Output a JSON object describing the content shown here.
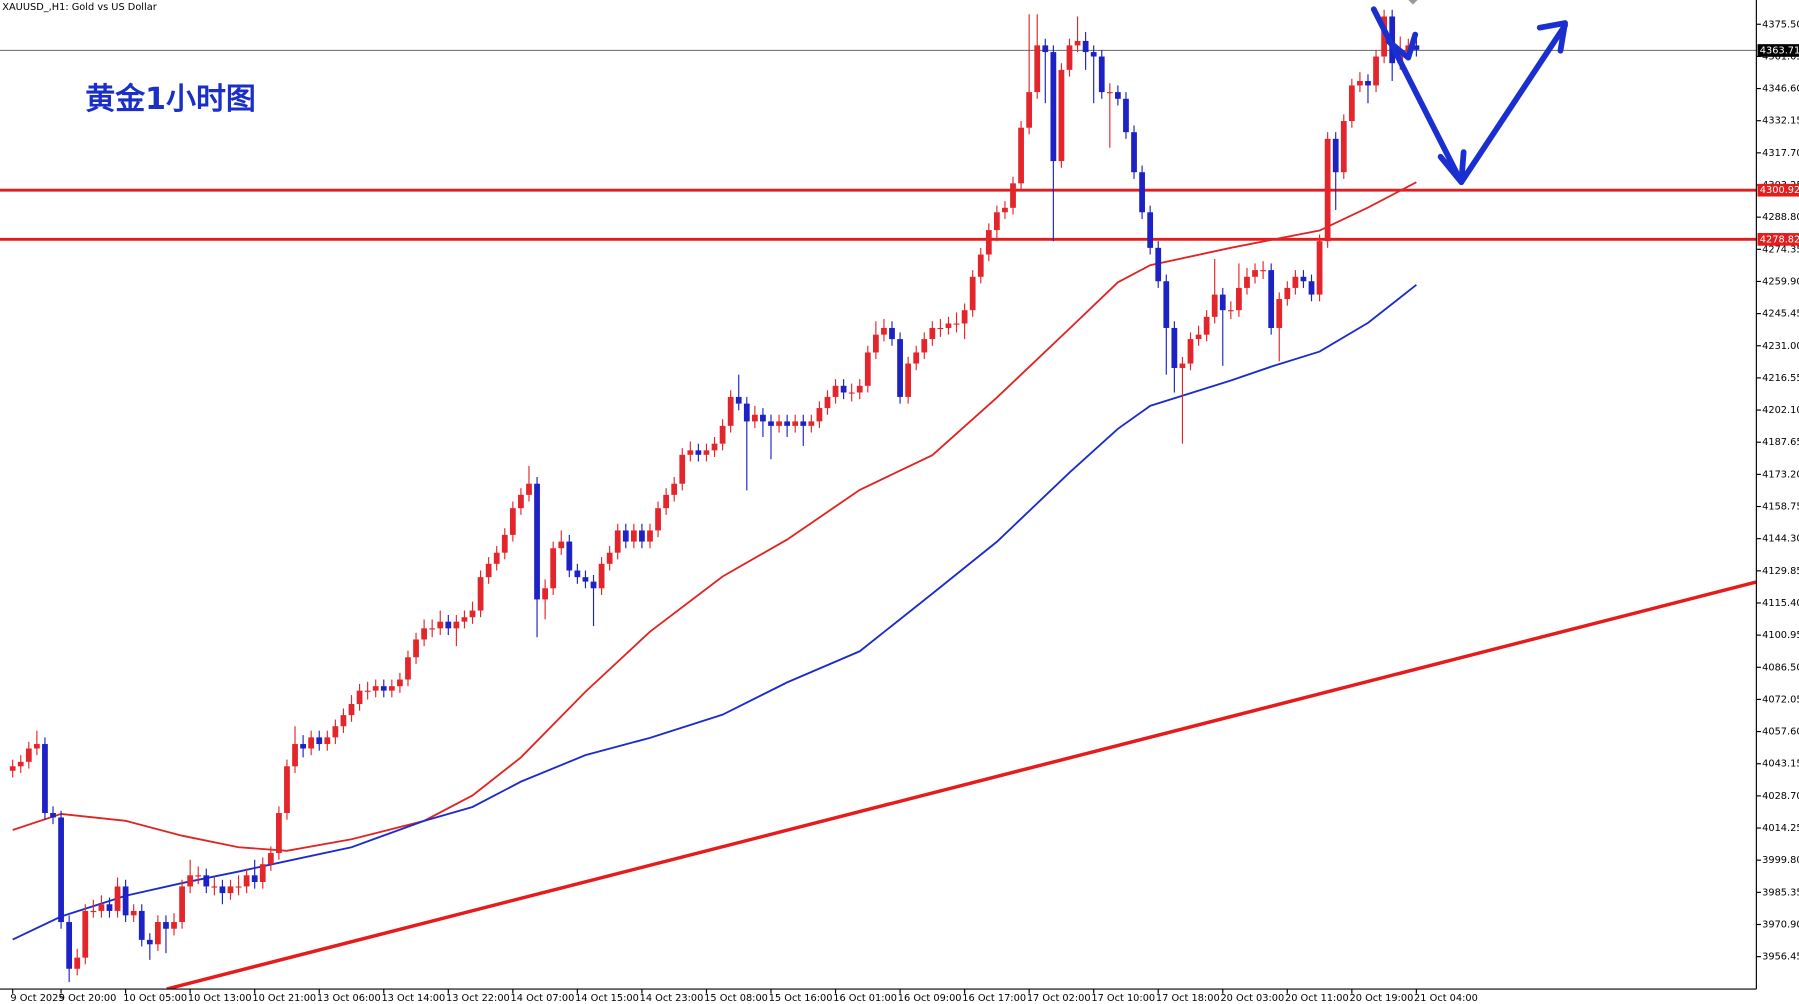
{
  "chart_data": {
    "type": "candlestick",
    "header": "XAUUSD_,H1:  Gold vs US Dollar",
    "title": "黄金1小时图",
    "up_color": "#e3262c",
    "down_color": "#1d22c4",
    "categories": [
      "9 Oct 2025",
      null,
      null,
      null,
      null,
      null,
      "9 Oct 20:00",
      null,
      null,
      null,
      null,
      null,
      null,
      null,
      "10 Oct 05:00",
      null,
      null,
      null,
      null,
      null,
      null,
      null,
      "10 Oct 13:00",
      null,
      null,
      null,
      null,
      null,
      null,
      null,
      "10 Oct 21:00",
      null,
      null,
      null,
      null,
      null,
      null,
      null,
      "13 Oct 06:00",
      null,
      null,
      null,
      null,
      null,
      null,
      null,
      "13 Oct 14:00",
      null,
      null,
      null,
      null,
      null,
      null,
      null,
      "13 Oct 22:00",
      null,
      null,
      null,
      null,
      null,
      null,
      null,
      "14 Oct 07:00",
      null,
      null,
      null,
      null,
      null,
      null,
      null,
      "14 Oct 15:00",
      null,
      null,
      null,
      null,
      null,
      null,
      null,
      "14 Oct 23:00",
      null,
      null,
      null,
      null,
      null,
      null,
      null,
      "15 Oct 08:00",
      null,
      null,
      null,
      null,
      null,
      null,
      null,
      "15 Oct 16:00",
      null,
      null,
      null,
      null,
      null,
      null,
      null,
      "16 Oct 01:00",
      null,
      null,
      null,
      null,
      null,
      null,
      null,
      "16 Oct 09:00",
      null,
      null,
      null,
      null,
      null,
      null,
      null,
      "16 Oct 17:00",
      null,
      null,
      null,
      null,
      null,
      null,
      null,
      "17 Oct 02:00",
      null,
      null,
      null,
      null,
      null,
      null,
      null,
      "17 Oct 10:00",
      null,
      null,
      null,
      null,
      null,
      null,
      null,
      "17 Oct 18:00",
      null,
      null,
      null,
      null,
      null,
      null,
      null,
      "20 Oct 03:00",
      null,
      null,
      null,
      null,
      null,
      null,
      null,
      "20 Oct 11:00",
      null,
      null,
      null,
      null,
      null,
      null,
      null,
      "20 Oct 19:00",
      null,
      null,
      null,
      null,
      null,
      null,
      null,
      "21 Oct 04:00"
    ],
    "open": [
      4040,
      4042,
      4044,
      4050,
      4052,
      4021,
      4019,
      3972,
      3951,
      3956,
      3977,
      3977,
      3980,
      3977,
      3988,
      3975,
      3977,
      3964,
      3962,
      3972,
      3969,
      3972,
      3988,
      3993,
      3993,
      3988,
      3988,
      3985,
      3988,
      3988,
      3993,
      3990,
      3998,
      4003,
      4021,
      4042,
      4052,
      4050,
      4055,
      4052,
      4055,
      4060,
      4065,
      4070,
      4076,
      4076,
      4078,
      4076,
      4078,
      4081,
      4091,
      4099,
      4104,
      4104,
      4107,
      4104,
      4107,
      4109,
      4112,
      4127,
      4133,
      4138,
      4146,
      4158,
      4164,
      4169,
      4117,
      4122,
      4140,
      4143,
      4130,
      4127,
      4125,
      4122,
      4133,
      4138,
      4148,
      4143,
      4148,
      4143,
      4148,
      4158,
      4164,
      4169,
      4182,
      4184,
      4182,
      4184,
      4187,
      4195,
      4208,
      4205,
      4197,
      4200,
      4197,
      4195,
      4197,
      4195,
      4197,
      4195,
      4197,
      4203,
      4208,
      4213,
      4210,
      4210,
      4213,
      4228,
      4236,
      4239,
      4234,
      4208,
      4223,
      4228,
      4234,
      4239,
      4239,
      4241,
      4241,
      4247,
      4262,
      4272,
      4283,
      4291,
      4293,
      4304,
      4329,
      4345,
      4366,
      4363,
      4314,
      4355,
      4366,
      4368,
      4363,
      4361,
      4345,
      4345,
      4342,
      4327,
      4309,
      4291,
      4275,
      4260,
      4239,
      4221,
      4223,
      4234,
      4236,
      4244,
      4254,
      4247,
      4247,
      4257,
      4262,
      4265,
      4265,
      4239,
      4252,
      4257,
      4262,
      4260,
      4254,
      4278,
      4324,
      4309,
      4332,
      4348,
      4350,
      4348,
      4361,
      4379,
      4358,
      4363,
      4366
    ],
    "high": [
      4045,
      4047,
      4053,
      4058,
      4055,
      4024,
      4022,
      3975,
      3960,
      3980,
      3982,
      3984,
      3983,
      3992,
      3991,
      3980,
      3980,
      3967,
      3975,
      3975,
      3976,
      3991,
      4000,
      3997,
      3996,
      3992,
      3991,
      3991,
      3993,
      3996,
      4000,
      4001,
      4006,
      4024,
      4045,
      4060,
      4056,
      4058,
      4058,
      4058,
      4063,
      4068,
      4074,
      4079,
      4080,
      4081,
      4081,
      4081,
      4084,
      4094,
      4102,
      4108,
      4108,
      4112,
      4110,
      4110,
      4112,
      4116,
      4130,
      4136,
      4141,
      4149,
      4161,
      4167,
      4177,
      4172,
      4126,
      4143,
      4148,
      4146,
      4133,
      4130,
      4128,
      4136,
      4141,
      4151,
      4151,
      4151,
      4151,
      4151,
      4161,
      4167,
      4172,
      4185,
      4188,
      4187,
      4187,
      4190,
      4198,
      4211,
      4218,
      4208,
      4204,
      4203,
      4200,
      4200,
      4200,
      4200,
      4200,
      4200,
      4206,
      4211,
      4216,
      4216,
      4214,
      4216,
      4231,
      4242,
      4243,
      4242,
      4237,
      4226,
      4231,
      4237,
      4242,
      4243,
      4244,
      4246,
      4250,
      4265,
      4275,
      4286,
      4294,
      4296,
      4307,
      4332,
      4380,
      4380,
      4369,
      4366,
      4358,
      4369,
      4379,
      4372,
      4366,
      4364,
      4349,
      4348,
      4345,
      4330,
      4312,
      4294,
      4278,
      4263,
      4242,
      4226,
      4237,
      4240,
      4247,
      4270,
      4257,
      4251,
      4268,
      4266,
      4268,
      4269,
      4268,
      4255,
      4260,
      4265,
      4265,
      4263,
      4281,
      4327,
      4327,
      4335,
      4351,
      4354,
      4353,
      4364,
      4382,
      4382,
      4370,
      4369,
      4369
    ],
    "low": [
      4037,
      4039,
      4041,
      4047,
      4018,
      4016,
      3969,
      3945,
      3948,
      3953,
      3974,
      3974,
      3974,
      3974,
      3972,
      3972,
      3961,
      3955,
      3959,
      3958,
      3966,
      3969,
      3985,
      3989,
      3985,
      3984,
      3980,
      3982,
      3984,
      3985,
      3987,
      3987,
      3995,
      4000,
      4018,
      4039,
      4046,
      4047,
      4049,
      4049,
      4052,
      4057,
      4062,
      4067,
      4072,
      4073,
      4073,
      4073,
      4075,
      4078,
      4088,
      4096,
      4100,
      4101,
      4101,
      4096,
      4104,
      4106,
      4109,
      4124,
      4130,
      4135,
      4143,
      4155,
      4161,
      4100,
      4108,
      4119,
      4137,
      4127,
      4124,
      4122,
      4105,
      4119,
      4130,
      4135,
      4140,
      4140,
      4140,
      4140,
      4145,
      4155,
      4161,
      4166,
      4179,
      4179,
      4179,
      4181,
      4184,
      4192,
      4202,
      4166,
      4194,
      4190,
      4180,
      4192,
      4190,
      4192,
      4186,
      4192,
      4194,
      4200,
      4205,
      4207,
      4206,
      4207,
      4210,
      4225,
      4233,
      4231,
      4205,
      4205,
      4220,
      4225,
      4231,
      4235,
      4236,
      4237,
      4234,
      4244,
      4259,
      4269,
      4278,
      4288,
      4290,
      4301,
      4326,
      4342,
      4340,
      4278,
      4311,
      4352,
      4363,
      4355,
      4340,
      4342,
      4320,
      4339,
      4324,
      4306,
      4288,
      4272,
      4257,
      4218,
      4210,
      4187,
      4220,
      4231,
      4233,
      4241,
      4222,
      4243,
      4244,
      4254,
      4259,
      4261,
      4236,
      4224,
      4249,
      4254,
      4257,
      4251,
      4251,
      4275,
      4292,
      4306,
      4329,
      4345,
      4340,
      4345,
      4358,
      4350,
      4355,
      4360,
      4361
    ],
    "close": [
      4042,
      4044,
      4050,
      4052,
      4021,
      4019,
      3972,
      3951,
      3956,
      3977,
      3977,
      3980,
      3977,
      3988,
      3975,
      3977,
      3964,
      3962,
      3972,
      3969,
      3972,
      3988,
      3993,
      3993,
      3988,
      3988,
      3985,
      3988,
      3988,
      3993,
      3990,
      3998,
      4003,
      4021,
      4042,
      4052,
      4050,
      4055,
      4052,
      4055,
      4060,
      4065,
      4070,
      4076,
      4076,
      4078,
      4076,
      4078,
      4081,
      4091,
      4099,
      4104,
      4104,
      4107,
      4104,
      4107,
      4109,
      4112,
      4127,
      4133,
      4138,
      4146,
      4158,
      4164,
      4169,
      4117,
      4122,
      4140,
      4143,
      4130,
      4127,
      4125,
      4122,
      4133,
      4138,
      4148,
      4143,
      4148,
      4143,
      4148,
      4158,
      4164,
      4169,
      4182,
      4184,
      4182,
      4184,
      4187,
      4195,
      4208,
      4205,
      4197,
      4200,
      4197,
      4195,
      4197,
      4195,
      4197,
      4195,
      4197,
      4203,
      4208,
      4213,
      4210,
      4210,
      4213,
      4228,
      4236,
      4239,
      4234,
      4208,
      4223,
      4228,
      4234,
      4239,
      4239,
      4241,
      4241,
      4247,
      4262,
      4272,
      4283,
      4291,
      4293,
      4304,
      4329,
      4345,
      4366,
      4363,
      4314,
      4355,
      4366,
      4368,
      4363,
      4361,
      4345,
      4345,
      4342,
      4327,
      4309,
      4291,
      4275,
      4260,
      4239,
      4221,
      4223,
      4234,
      4236,
      4244,
      4254,
      4247,
      4247,
      4257,
      4262,
      4265,
      4265,
      4239,
      4252,
      4257,
      4262,
      4260,
      4254,
      4278,
      4324,
      4309,
      4332,
      4348,
      4350,
      4348,
      4361,
      4379,
      4358,
      4363,
      4366,
      4364
    ],
    "lines": [
      {
        "color": "#e02424",
        "width": 1.6,
        "x": [
          0,
          6,
          14,
          21,
          28,
          34,
          42,
          51,
          57,
          63,
          71,
          79,
          88,
          96,
          105,
          114,
          122,
          131,
          137,
          141,
          151,
          156,
          162,
          168,
          174
        ],
        "values": [
          4013.4,
          4020.6,
          4017.5,
          4010.8,
          4005.6,
          4004.0,
          4009.2,
          4017.5,
          4028.9,
          4046.0,
          4075.5,
          4102.5,
          4127.3,
          4143.9,
          4166.2,
          4181.8,
          4207.7,
          4238.7,
          4259.5,
          4267.2,
          4275.0,
          4278.6,
          4282.8,
          4293.1,
          4304.5
        ]
      },
      {
        "color": "#1a2ccc",
        "width": 1.6,
        "x": [
          0,
          6,
          14,
          21,
          28,
          34,
          42,
          51,
          57,
          63,
          71,
          79,
          88,
          96,
          105,
          114,
          122,
          131,
          137,
          141,
          151,
          156,
          162,
          168,
          174
        ],
        "values": [
          3964.1,
          3974.5,
          3983.8,
          3989.5,
          3994.7,
          3999.4,
          4005.6,
          4017.5,
          4023.7,
          4035.1,
          4047.0,
          4054.8,
          4065.2,
          4079.7,
          4093.7,
          4119.6,
          4142.9,
          4174.0,
          4193.7,
          4204.0,
          4215.4,
          4221.6,
          4228.4,
          4241.3,
          4258.4
        ]
      },
      {
        "color": "#e51c1c",
        "width": 3,
        "x": [
          19.1,
          216.1
        ],
        "values": [
          3941.9,
          4124.8
        ]
      }
    ],
    "levels": [
      {
        "value": 4363.71,
        "color": "#7a7a7a",
        "label_color": "#000000"
      },
      {
        "value": 4300.92,
        "color": "#e51c1c",
        "label_color": "#e51c1c"
      },
      {
        "value": 4278.82,
        "color": "#e51c1c",
        "label_color": "#e51c1c"
      }
    ],
    "ylim": [
      3941.9,
      4386.4
    ],
    "yticks": [
      {
        "value": 4375.5,
        "label": "4375.50"
      },
      4361.05,
      {
        "value": 4346.6,
        "label": "4346.60"
      },
      4332.15,
      {
        "value": 4317.7,
        "label": "4317.70"
      },
      4303.25,
      {
        "value": 4288.8,
        "label": "4288.80"
      },
      4274.35,
      {
        "value": 4259.9,
        "label": "4259.90"
      },
      4245.45,
      {
        "value": 4231,
        "label": "4231.00"
      },
      4216.55,
      {
        "value": 4202.1,
        "label": "4202.10"
      },
      4187.65,
      {
        "value": 4173.2,
        "label": "4173.20"
      },
      4158.75,
      {
        "value": 4144.3,
        "label": "4144.30"
      },
      4129.85,
      {
        "value": 4115.4,
        "label": "4115.40"
      },
      4100.95,
      {
        "value": 4086.5,
        "label": "4086.50"
      },
      4072.05,
      {
        "value": 4057.6,
        "label": "4057.60"
      },
      4043.15,
      {
        "value": 4028.7,
        "label": "4028.70"
      },
      4014.25,
      {
        "value": 3999.8,
        "label": "3999.80"
      },
      3985.35,
      {
        "value": 3970.9,
        "label": "3970.90"
      },
      3956.45
    ]
  }
}
